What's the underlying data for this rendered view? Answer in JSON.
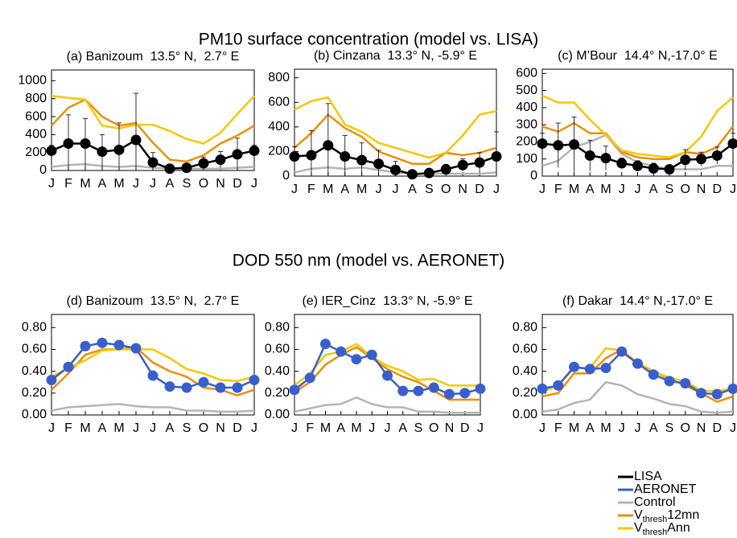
{
  "headings": [
    "PM10 surface concentration (model vs. LISA)",
    "DOD 550 nm (model vs. AERONET)"
  ],
  "legend": [
    {
      "text": [
        "LISA"
      ],
      "color": "#000000"
    },
    {
      "text": [
        "AERONET"
      ],
      "color": "#3a5fcd"
    },
    {
      "text": [
        "Control"
      ],
      "color": "#b4b4b4"
    },
    {
      "text": [
        "V",
        "thresh",
        "12mn"
      ],
      "color": "#e8900a"
    },
    {
      "text": [
        "V",
        "thresh",
        "Ann"
      ],
      "color": "#f5c800"
    }
  ],
  "chart_data": [
    {
      "type": "line",
      "title": "(a) Banizoum  13.5° N,  2.7° E",
      "categories": [
        "J",
        "F",
        "M",
        "A",
        "M",
        "J",
        "J",
        "A",
        "S",
        "O",
        "N",
        "D",
        "J"
      ],
      "ylim": [
        0,
        1120
      ],
      "yticks": [
        0,
        200,
        400,
        600,
        800,
        1000
      ],
      "series": [
        {
          "color": "#b4b4b4",
          "values": [
            40,
            60,
            70,
            50,
            40,
            50,
            30,
            20,
            20,
            20,
            20,
            30,
            40
          ]
        },
        {
          "color": "#e8900a",
          "values": [
            500,
            700,
            790,
            600,
            500,
            530,
            310,
            120,
            100,
            170,
            300,
            390,
            500
          ]
        },
        {
          "color": "#f5c800",
          "values": [
            830,
            810,
            790,
            500,
            470,
            510,
            510,
            440,
            350,
            300,
            420,
            630,
            830
          ]
        },
        {
          "color": "#000000",
          "markers": true,
          "values": [
            220,
            300,
            300,
            210,
            230,
            340,
            90,
            20,
            30,
            80,
            120,
            180,
            220
          ],
          "errors": [
            60,
            320,
            280,
            190,
            300,
            520,
            110,
            40,
            30,
            70,
            90,
            180,
            60
          ]
        }
      ]
    },
    {
      "type": "line",
      "title": "(b) Cinzana  13.3° N, -5.9° E",
      "categories": [
        "J",
        "F",
        "M",
        "A",
        "M",
        "J",
        "J",
        "A",
        "S",
        "O",
        "N",
        "D",
        "J"
      ],
      "ylim": [
        0,
        870
      ],
      "yticks": [
        0,
        200,
        400,
        600,
        800
      ],
      "series": [
        {
          "color": "#b4b4b4",
          "values": [
            30,
            60,
            70,
            60,
            70,
            50,
            30,
            20,
            20,
            20,
            20,
            20,
            30
          ]
        },
        {
          "color": "#e8900a",
          "values": [
            230,
            350,
            500,
            390,
            320,
            200,
            150,
            100,
            100,
            190,
            170,
            190,
            230
          ]
        },
        {
          "color": "#f5c800",
          "values": [
            540,
            610,
            640,
            420,
            360,
            270,
            230,
            190,
            150,
            190,
            330,
            500,
            530
          ]
        },
        {
          "color": "#000000",
          "markers": true,
          "values": [
            160,
            170,
            250,
            160,
            130,
            100,
            50,
            15,
            25,
            55,
            90,
            110,
            160
          ],
          "errors": [
            80,
            200,
            340,
            170,
            140,
            110,
            70,
            20,
            20,
            40,
            50,
            80,
            200
          ]
        }
      ]
    },
    {
      "type": "line",
      "title": "(c) M’Bour  14.4° N,-17.0° E",
      "categories": [
        "J",
        "F",
        "M",
        "A",
        "M",
        "J",
        "J",
        "A",
        "S",
        "O",
        "N",
        "D",
        "J"
      ],
      "ylim": [
        0,
        625
      ],
      "yticks": [
        0,
        100,
        200,
        300,
        400,
        500,
        600
      ],
      "series": [
        {
          "color": "#b4b4b4",
          "values": [
            60,
            90,
            170,
            200,
            240,
            130,
            80,
            60,
            40,
            40,
            40,
            60,
            60
          ]
        },
        {
          "color": "#e8900a",
          "values": [
            290,
            260,
            310,
            250,
            250,
            140,
            110,
            100,
            100,
            140,
            130,
            170,
            290
          ]
        },
        {
          "color": "#f5c800",
          "values": [
            470,
            430,
            430,
            330,
            240,
            150,
            130,
            120,
            110,
            140,
            230,
            380,
            460
          ]
        },
        {
          "color": "#000000",
          "markers": true,
          "values": [
            190,
            180,
            185,
            120,
            105,
            75,
            60,
            45,
            40,
            95,
            100,
            120,
            190
          ],
          "errors": [
            60,
            130,
            160,
            90,
            70,
            30,
            30,
            30,
            20,
            60,
            40,
            50,
            60
          ]
        }
      ]
    },
    {
      "type": "line",
      "title": "(d) Banizoum  13.5° N,  2.7° E",
      "categories": [
        "J",
        "F",
        "M",
        "A",
        "M",
        "J",
        "J",
        "A",
        "S",
        "O",
        "N",
        "D",
        "J"
      ],
      "ylim": [
        0,
        0.92
      ],
      "yticks": [
        {
          "value": 0,
          "label": "0.00"
        },
        {
          "value": 0.2,
          "label": "0.20"
        },
        {
          "value": 0.4,
          "label": "0.40"
        },
        {
          "value": 0.6,
          "label": "0.60"
        },
        {
          "value": 0.8,
          "label": "0.80"
        }
      ],
      "series": [
        {
          "color": "#b4b4b4",
          "values": [
            0.04,
            0.07,
            0.08,
            0.09,
            0.1,
            0.08,
            0.07,
            0.07,
            0.04,
            0.04,
            0.03,
            0.03,
            0.04
          ]
        },
        {
          "color": "#e8900a",
          "values": [
            0.23,
            0.38,
            0.55,
            0.6,
            0.6,
            0.62,
            0.48,
            0.4,
            0.35,
            0.25,
            0.23,
            0.18,
            0.23
          ]
        },
        {
          "color": "#f5c800",
          "values": [
            0.35,
            0.43,
            0.5,
            0.59,
            0.6,
            0.6,
            0.6,
            0.52,
            0.42,
            0.38,
            0.32,
            0.31,
            0.35
          ]
        },
        {
          "color": "#3a5fcd",
          "markers": true,
          "values": [
            0.32,
            0.44,
            0.63,
            0.66,
            0.64,
            0.61,
            0.36,
            0.26,
            0.25,
            0.3,
            0.25,
            0.25,
            0.32
          ]
        }
      ]
    },
    {
      "type": "line",
      "title": "(e) IER_Cinz  13.3° N, -5.9° E",
      "categories": [
        "J",
        "F",
        "M",
        "A",
        "M",
        "J",
        "J",
        "A",
        "S",
        "O",
        "N",
        "D",
        "J"
      ],
      "ylim": [
        0,
        0.92
      ],
      "yticks": [
        {
          "value": 0,
          "label": "0.00"
        },
        {
          "value": 0.2,
          "label": "0.20"
        },
        {
          "value": 0.4,
          "label": "0.40"
        },
        {
          "value": 0.6,
          "label": "0.60"
        },
        {
          "value": 0.8,
          "label": "0.80"
        }
      ],
      "series": [
        {
          "color": "#b4b4b4",
          "values": [
            0.03,
            0.06,
            0.09,
            0.1,
            0.16,
            0.1,
            0.07,
            0.07,
            0.03,
            0.03,
            0.02,
            0.02,
            0.02
          ]
        },
        {
          "color": "#e8900a",
          "values": [
            0.21,
            0.3,
            0.46,
            0.55,
            0.62,
            0.52,
            0.42,
            0.35,
            0.3,
            0.22,
            0.14,
            0.14,
            0.14
          ]
        },
        {
          "color": "#f5c800",
          "values": [
            0.27,
            0.38,
            0.55,
            0.58,
            0.65,
            0.53,
            0.45,
            0.4,
            0.32,
            0.33,
            0.27,
            0.27,
            0.27
          ]
        },
        {
          "color": "#3a5fcd",
          "markers": true,
          "values": [
            0.23,
            0.34,
            0.65,
            0.58,
            0.51,
            0.55,
            0.36,
            0.22,
            0.22,
            0.25,
            0.19,
            0.2,
            0.24
          ]
        }
      ]
    },
    {
      "type": "line",
      "title": "(f) Dakar  14.4° N,-17.0° E",
      "categories": [
        "J",
        "F",
        "M",
        "A",
        "M",
        "J",
        "J",
        "A",
        "S",
        "O",
        "N",
        "D",
        "J"
      ],
      "ylim": [
        0,
        0.92
      ],
      "yticks": [
        {
          "value": 0,
          "label": "0.00"
        },
        {
          "value": 0.2,
          "label": "0.20"
        },
        {
          "value": 0.4,
          "label": "0.40"
        },
        {
          "value": 0.6,
          "label": "0.60"
        },
        {
          "value": 0.8,
          "label": "0.80"
        }
      ],
      "series": [
        {
          "color": "#b4b4b4",
          "values": [
            0.03,
            0.05,
            0.11,
            0.14,
            0.3,
            0.27,
            0.19,
            0.15,
            0.1,
            0.08,
            0.03,
            0.02,
            0.03
          ]
        },
        {
          "color": "#e8900a",
          "values": [
            0.17,
            0.2,
            0.38,
            0.38,
            0.52,
            0.6,
            0.46,
            0.4,
            0.33,
            0.27,
            0.2,
            0.12,
            0.17
          ]
        },
        {
          "color": "#f5c800",
          "values": [
            0.21,
            0.27,
            0.43,
            0.43,
            0.61,
            0.59,
            0.48,
            0.4,
            0.34,
            0.31,
            0.22,
            0.22,
            0.24
          ]
        },
        {
          "color": "#3a5fcd",
          "markers": true,
          "values": [
            0.24,
            0.27,
            0.44,
            0.42,
            0.43,
            0.58,
            0.47,
            0.37,
            0.31,
            0.29,
            0.2,
            0.19,
            0.24
          ]
        }
      ]
    }
  ]
}
